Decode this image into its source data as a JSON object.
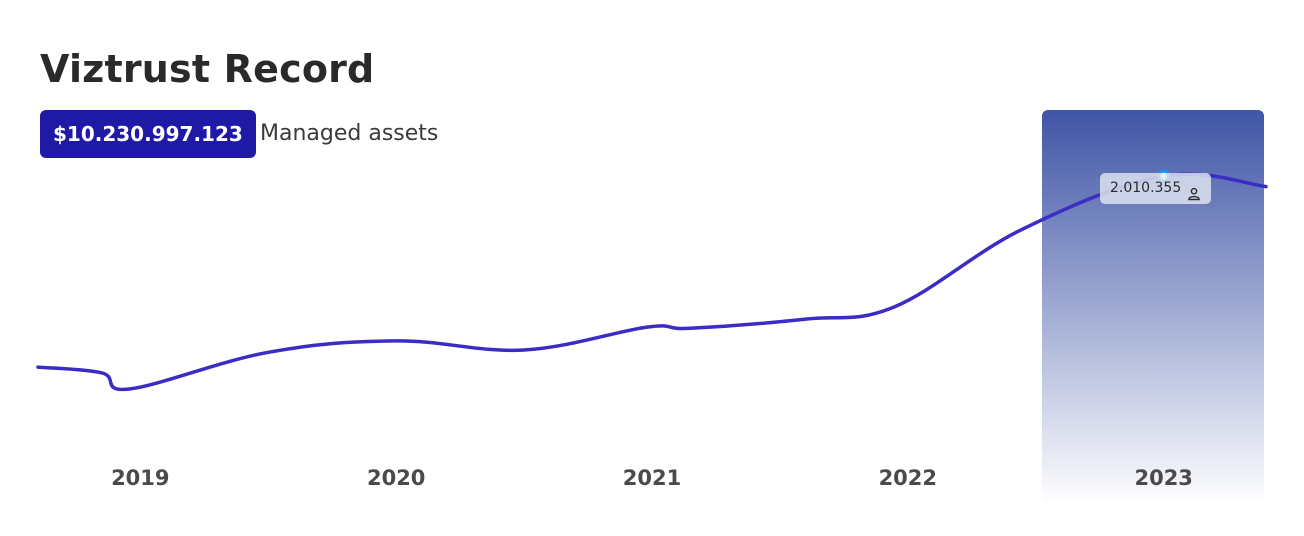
{
  "header": {
    "title": "Viztrust Record",
    "assets_value": "$10.230.997.123",
    "assets_label": "Managed assets"
  },
  "tooltip": {
    "value": "2.010.355",
    "icon": "user-icon"
  },
  "colors": {
    "line": "#3a2cc4",
    "badge": "#1f1aa6",
    "highlight_top": "#3f55a6",
    "marker_fill": "#ffffff",
    "marker_stroke": "#1e90ff"
  },
  "chart_data": {
    "type": "line",
    "categories": [
      "2019",
      "2020",
      "2021",
      "2022",
      "2023"
    ],
    "highlighted_category": "2023",
    "highlighted_point": {
      "x": 2023.0,
      "y": 2010355
    },
    "series": [
      {
        "x": [
          2018.6,
          2018.85,
          2018.96,
          2019.5,
          2020.0,
          2020.5,
          2020.98,
          2021.15,
          2021.6,
          2021.95,
          2022.45,
          2023.0,
          2023.4
        ],
        "y": [
          1175000,
          1150000,
          1080000,
          1240000,
          1290000,
          1250000,
          1350000,
          1345000,
          1385000,
          1440000,
          1780000,
          2010355,
          1965000
        ]
      }
    ],
    "xlim": [
      2018.6,
      2023.4
    ],
    "ylim": [
      900000,
      2300000
    ],
    "grid": false,
    "legend": "none"
  }
}
